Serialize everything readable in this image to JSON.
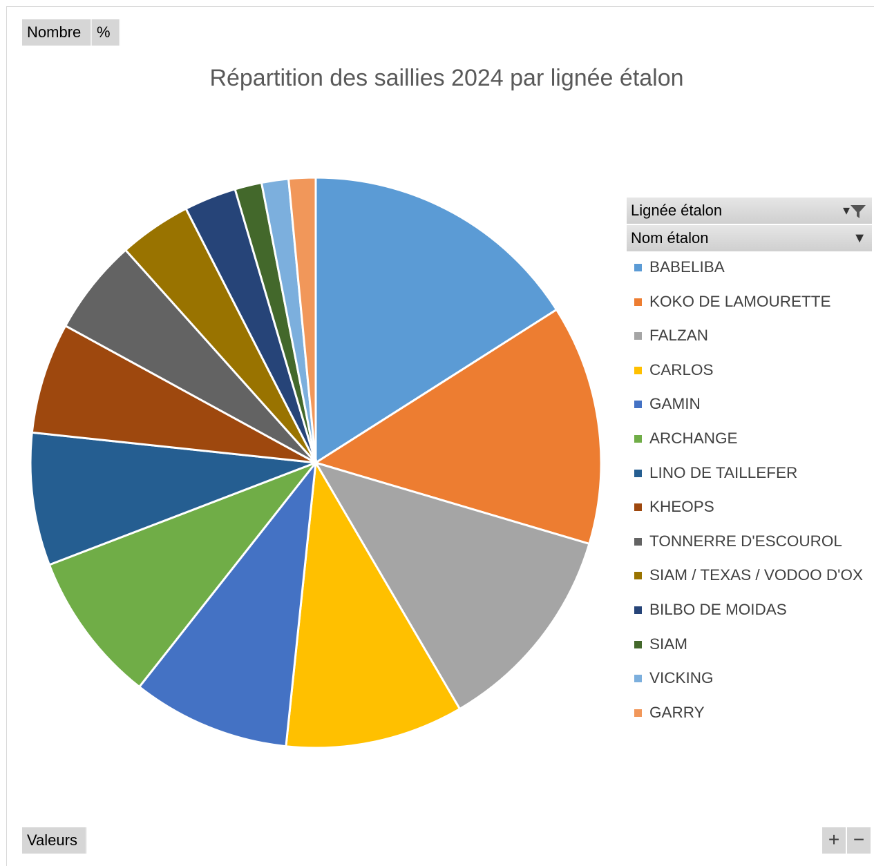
{
  "buttons": {
    "nombre": "Nombre",
    "percent": "%",
    "valeurs": "Valeurs",
    "zoom_in": "+",
    "zoom_out": "−"
  },
  "legend_headers": {
    "lignee": "Lignée étalon",
    "nom": "Nom étalon",
    "lignee_icon": "filter-icon",
    "nom_icon": "dropdown-arrow-icon"
  },
  "chart_data": {
    "type": "pie",
    "title": "Répartition des saillies 2024 par lignée étalon",
    "legend_position": "right",
    "categories": [
      "BABELIBA",
      "KOKO DE LAMOURETTE",
      "FALZAN",
      "CARLOS",
      "GAMIN",
      "ARCHANGE",
      "LINO DE TAILLEFER",
      "KHEOPS",
      "TONNERRE D'ESCOUROL",
      "SIAM / TEXAS / VODOO D'OX",
      "BILBO DE MOIDAS",
      "SIAM",
      "VICKING",
      "GARRY"
    ],
    "values": [
      16.8,
      14.3,
      12.6,
      10.6,
      9.4,
      9.0,
      7.9,
      6.6,
      5.7,
      4.3,
      3.1,
      1.6,
      1.6,
      1.6
    ],
    "colors": [
      "#5B9BD5",
      "#ED7D31",
      "#A5A5A5",
      "#FFC000",
      "#4472C4",
      "#70AD47",
      "#255E91",
      "#9E480E",
      "#636363",
      "#997300",
      "#264478",
      "#43682B",
      "#7CAFDD",
      "#F1975A"
    ]
  }
}
